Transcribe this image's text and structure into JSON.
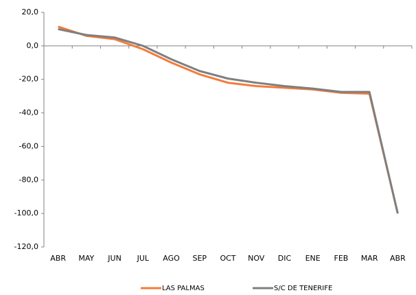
{
  "chart_data": {
    "type": "line",
    "categories": [
      "ABR",
      "MAY",
      "JUN",
      "JUL",
      "AGO",
      "SEP",
      "OCT",
      "NOV",
      "DIC",
      "ENE",
      "FEB",
      "MAR",
      "ABR"
    ],
    "series": [
      {
        "name": "LAS PALMAS",
        "color": "#f47b3a",
        "values": [
          11.5,
          6,
          4,
          -2,
          -10,
          -17,
          -22,
          -24,
          -25,
          -26,
          -28,
          -28.5,
          -100
        ]
      },
      {
        "name": "S/C DE TENERIFE",
        "color": "#7f7f7f",
        "values": [
          10,
          6.5,
          5,
          0,
          -8,
          -15,
          -19.5,
          -22,
          -24,
          -25.5,
          -27.5,
          -27.5,
          -100
        ]
      }
    ],
    "ylim": [
      -120,
      20
    ],
    "yticks": [
      {
        "value": -120,
        "label": "-120,0"
      },
      {
        "value": -100,
        "label": "-100,0"
      },
      {
        "value": -80,
        "label": "-80,0"
      },
      {
        "value": -60,
        "label": "-60,0"
      },
      {
        "value": -40,
        "label": "-40,0"
      },
      {
        "value": -20,
        "label": "-20,0"
      },
      {
        "value": 0,
        "label": "0,0"
      },
      {
        "value": 20,
        "label": "20,0"
      }
    ],
    "legend": "bottom"
  }
}
